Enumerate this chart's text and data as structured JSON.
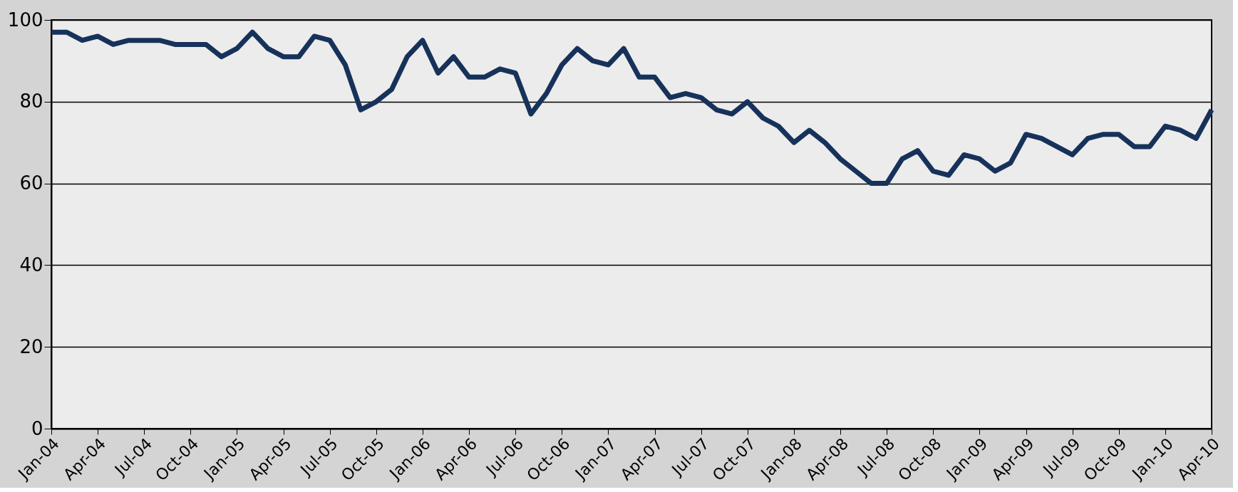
{
  "chart_data": {
    "type": "line",
    "categories": [
      "Jan-04",
      null,
      null,
      "Apr-04",
      null,
      null,
      "Jul-04",
      null,
      null,
      "Oct-04",
      null,
      null,
      "Jan-05",
      null,
      null,
      "Apr-05",
      null,
      null,
      "Jul-05",
      null,
      null,
      "Oct-05",
      null,
      null,
      "Jan-06",
      null,
      null,
      "Apr-06",
      null,
      null,
      "Jul-06",
      null,
      null,
      "Oct-06",
      null,
      null,
      "Jan-07",
      null,
      null,
      "Apr-07",
      null,
      null,
      "Jul-07",
      null,
      null,
      "Oct-07",
      null,
      null,
      "Jan-08",
      null,
      null,
      "Apr-08",
      null,
      null,
      "Jul-08",
      null,
      null,
      "Oct-08",
      null,
      null,
      "Jan-09",
      null,
      null,
      "Apr-09",
      null,
      null,
      "Jul-09",
      null,
      null,
      "Oct-09",
      null,
      null,
      "Jan-10",
      null,
      null,
      "Apr-10"
    ],
    "series": [
      {
        "color": "#17325a",
        "values": [
          97,
          97,
          95,
          96,
          94,
          95,
          95,
          95,
          94,
          94,
          94,
          91,
          93,
          97,
          93,
          91,
          91,
          96,
          95,
          89,
          78,
          80,
          83,
          91,
          95,
          87,
          91,
          86,
          86,
          88,
          87,
          77,
          82,
          89,
          93,
          90,
          89,
          93,
          86,
          86,
          81,
          82,
          81,
          78,
          77,
          80,
          76,
          74,
          70,
          73,
          70,
          66,
          63,
          60,
          60,
          66,
          68,
          63,
          62,
          67,
          66,
          63,
          65,
          72,
          71,
          69,
          67,
          71,
          72,
          72,
          69,
          69,
          74,
          73,
          71,
          78
        ]
      }
    ],
    "ylim": [
      0,
      100
    ],
    "yticks": [
      0,
      20,
      40,
      60,
      80,
      100
    ],
    "grid": "y",
    "marker": "none",
    "line_style": "solid"
  }
}
